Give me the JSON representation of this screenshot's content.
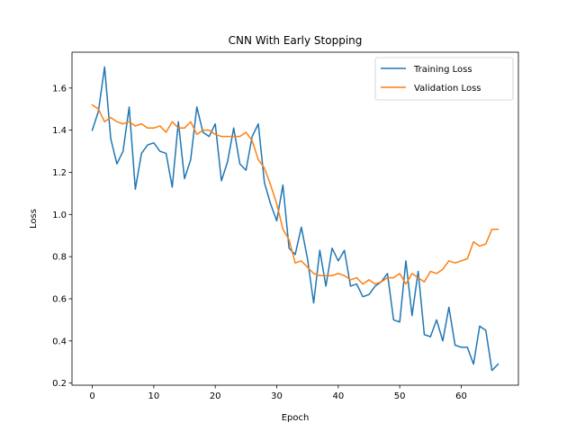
{
  "chart_data": {
    "type": "line",
    "title": "CNN With Early Stopping",
    "xlabel": "Epoch",
    "ylabel": "Loss",
    "xlim": [
      -3.3,
      69.3
    ],
    "ylim": [
      0.19,
      1.77
    ],
    "xticks": [
      0,
      10,
      20,
      30,
      40,
      50,
      60
    ],
    "yticks": [
      0.2,
      0.4,
      0.6,
      0.8,
      1.0,
      1.2,
      1.4,
      1.6
    ],
    "ytick_labels": [
      "0.2",
      "0.4",
      "0.6",
      "0.8",
      "1.0",
      "1.2",
      "1.4",
      "1.6"
    ],
    "legend_position": "top-right",
    "grid": false,
    "x": [
      0,
      1,
      2,
      3,
      4,
      5,
      6,
      7,
      8,
      9,
      10,
      11,
      12,
      13,
      14,
      15,
      16,
      17,
      18,
      19,
      20,
      21,
      22,
      23,
      24,
      25,
      26,
      27,
      28,
      29,
      30,
      31,
      32,
      33,
      34,
      35,
      36,
      37,
      38,
      39,
      40,
      41,
      42,
      43,
      44,
      45,
      46,
      47,
      48,
      49,
      50,
      51,
      52,
      53,
      54,
      55,
      56,
      57,
      58,
      59,
      60,
      61,
      62,
      63,
      64,
      65,
      66
    ],
    "series": [
      {
        "name": "Training Loss",
        "color": "#1f77b4",
        "values": [
          1.4,
          1.49,
          1.7,
          1.36,
          1.24,
          1.3,
          1.51,
          1.12,
          1.29,
          1.33,
          1.34,
          1.3,
          1.29,
          1.13,
          1.44,
          1.17,
          1.26,
          1.51,
          1.39,
          1.37,
          1.43,
          1.16,
          1.25,
          1.41,
          1.24,
          1.21,
          1.37,
          1.43,
          1.15,
          1.05,
          0.97,
          1.14,
          0.84,
          0.81,
          0.94,
          0.79,
          0.58,
          0.83,
          0.66,
          0.84,
          0.78,
          0.83,
          0.66,
          0.67,
          0.61,
          0.62,
          0.66,
          0.68,
          0.72,
          0.5,
          0.49,
          0.78,
          0.52,
          0.73,
          0.43,
          0.42,
          0.5,
          0.4,
          0.56,
          0.38,
          0.37,
          0.37,
          0.29,
          0.47,
          0.45,
          0.26,
          0.29
        ]
      },
      {
        "name": "Validation Loss",
        "color": "#ff7f0e",
        "values": [
          1.52,
          1.5,
          1.44,
          1.46,
          1.44,
          1.43,
          1.44,
          1.42,
          1.43,
          1.41,
          1.41,
          1.42,
          1.39,
          1.44,
          1.41,
          1.41,
          1.44,
          1.38,
          1.4,
          1.4,
          1.38,
          1.37,
          1.37,
          1.37,
          1.37,
          1.39,
          1.35,
          1.26,
          1.22,
          1.14,
          1.05,
          0.93,
          0.88,
          0.77,
          0.78,
          0.75,
          0.72,
          0.71,
          0.71,
          0.71,
          0.72,
          0.71,
          0.69,
          0.7,
          0.67,
          0.69,
          0.67,
          0.68,
          0.7,
          0.7,
          0.72,
          0.67,
          0.72,
          0.7,
          0.68,
          0.73,
          0.72,
          0.74,
          0.78,
          0.77,
          0.78,
          0.79,
          0.87,
          0.85,
          0.86,
          0.93,
          0.93
        ]
      }
    ]
  }
}
